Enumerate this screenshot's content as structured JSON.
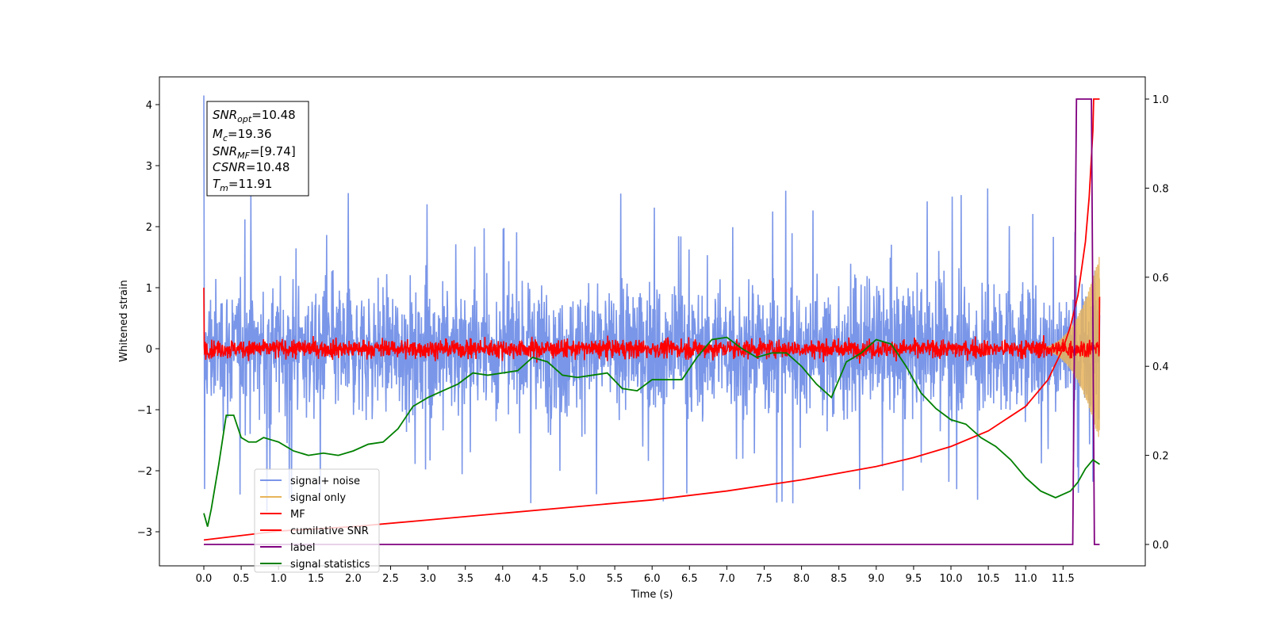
{
  "chart_data": {
    "type": "line",
    "xlabel": "Time (s)",
    "ylabel": "Whitened strain",
    "xlim": [
      -0.6,
      12.6
    ],
    "ylim": [
      -3.5,
      4.5
    ],
    "y2lim": [
      -0.05,
      1.05
    ],
    "x_ticks": [
      "0.0",
      "0.5",
      "1.0",
      "1.5",
      "2.0",
      "2.5",
      "3.0",
      "3.5",
      "4.0",
      "4.5",
      "5.0",
      "5.5",
      "6.0",
      "6.5",
      "7.0",
      "7.5",
      "8.0",
      "8.5",
      "9.0",
      "9.5",
      "10.0",
      "10.5",
      "11.0",
      "11.5"
    ],
    "y_ticks": [
      "4",
      "3",
      "2",
      "1",
      "0",
      "−1",
      "−2",
      "−3"
    ],
    "y2_ticks": [
      "1.0",
      "0.8",
      "0.6",
      "0.4",
      "0.2",
      "0.0"
    ],
    "legend_position": "lower left",
    "annotation": {
      "snr_opt": {
        "base": "SNR",
        "sub": "opt",
        "value": "=10.48"
      },
      "mc": {
        "base": "M",
        "sub": "c",
        "value": "=19.36"
      },
      "snr_mf": {
        "base": "SNR",
        "sub": "MF",
        "value": "=[9.74]"
      },
      "csnr": {
        "base": "CSNR",
        "sub": "",
        "value": "=10.48"
      },
      "tm": {
        "base": "T",
        "sub": "m",
        "value": "=11.91"
      }
    },
    "series": [
      {
        "name": "signal+ noise",
        "color": "#7a96e8",
        "axis": "left",
        "kind": "noise",
        "amplitude": 1.3,
        "spikes": 2.7,
        "x_range": [
          0.0,
          11.99
        ],
        "start_spike": 4.15
      },
      {
        "name": "signal only",
        "color": "#e8b45a",
        "axis": "left",
        "kind": "chirp",
        "x_range": [
          11.0,
          11.99
        ],
        "peak_amplitude": 1.55
      },
      {
        "name": "MF",
        "color": "#ff0000",
        "axis": "left",
        "kind": "mf",
        "baseline": 0.0,
        "amplitude": 0.12,
        "x_range": [
          0.0,
          11.99
        ],
        "start_value": 1.0,
        "end_value": 0.85
      },
      {
        "name": "cumilative SNR",
        "color": "#ff0000",
        "axis": "right",
        "x": [
          0.0,
          1.0,
          2.0,
          3.0,
          4.0,
          5.0,
          6.0,
          7.0,
          8.0,
          9.0,
          9.5,
          10.0,
          10.5,
          11.0,
          11.3,
          11.5,
          11.6,
          11.7,
          11.8,
          11.85,
          11.9,
          11.91,
          11.99
        ],
        "values": [
          0.01,
          0.03,
          0.04,
          0.055,
          0.07,
          0.085,
          0.1,
          0.12,
          0.145,
          0.175,
          0.195,
          0.22,
          0.255,
          0.31,
          0.37,
          0.44,
          0.49,
          0.56,
          0.68,
          0.78,
          0.93,
          1.0,
          1.0
        ]
      },
      {
        "name": "label",
        "color": "#800080",
        "axis": "right",
        "x": [
          0.0,
          11.63,
          11.68,
          11.88,
          11.92,
          11.99
        ],
        "values": [
          0.0,
          0.0,
          1.0,
          1.0,
          0.0,
          0.0
        ]
      },
      {
        "name": "signal statistics",
        "color": "#008000",
        "axis": "right",
        "x": [
          0.0,
          0.05,
          0.1,
          0.2,
          0.3,
          0.4,
          0.5,
          0.6,
          0.7,
          0.8,
          0.9,
          1.0,
          1.2,
          1.4,
          1.6,
          1.8,
          2.0,
          2.2,
          2.4,
          2.6,
          2.8,
          3.0,
          3.2,
          3.4,
          3.6,
          3.8,
          4.0,
          4.2,
          4.4,
          4.6,
          4.8,
          5.0,
          5.2,
          5.4,
          5.6,
          5.8,
          6.0,
          6.2,
          6.4,
          6.6,
          6.8,
          7.0,
          7.2,
          7.4,
          7.6,
          7.8,
          8.0,
          8.2,
          8.4,
          8.6,
          8.8,
          9.0,
          9.2,
          9.4,
          9.6,
          9.8,
          10.0,
          10.2,
          10.4,
          10.6,
          10.8,
          11.0,
          11.2,
          11.4,
          11.6,
          11.7,
          11.8,
          11.9,
          11.99
        ],
        "values": [
          0.07,
          0.04,
          0.08,
          0.18,
          0.29,
          0.29,
          0.24,
          0.23,
          0.23,
          0.24,
          0.235,
          0.23,
          0.21,
          0.2,
          0.205,
          0.2,
          0.21,
          0.225,
          0.23,
          0.26,
          0.31,
          0.33,
          0.345,
          0.36,
          0.385,
          0.38,
          0.385,
          0.39,
          0.42,
          0.41,
          0.38,
          0.375,
          0.38,
          0.385,
          0.35,
          0.345,
          0.37,
          0.37,
          0.37,
          0.42,
          0.46,
          0.465,
          0.44,
          0.42,
          0.43,
          0.43,
          0.4,
          0.36,
          0.33,
          0.41,
          0.43,
          0.46,
          0.45,
          0.4,
          0.34,
          0.305,
          0.28,
          0.27,
          0.24,
          0.22,
          0.19,
          0.15,
          0.12,
          0.105,
          0.12,
          0.14,
          0.17,
          0.19,
          0.18
        ]
      }
    ]
  }
}
